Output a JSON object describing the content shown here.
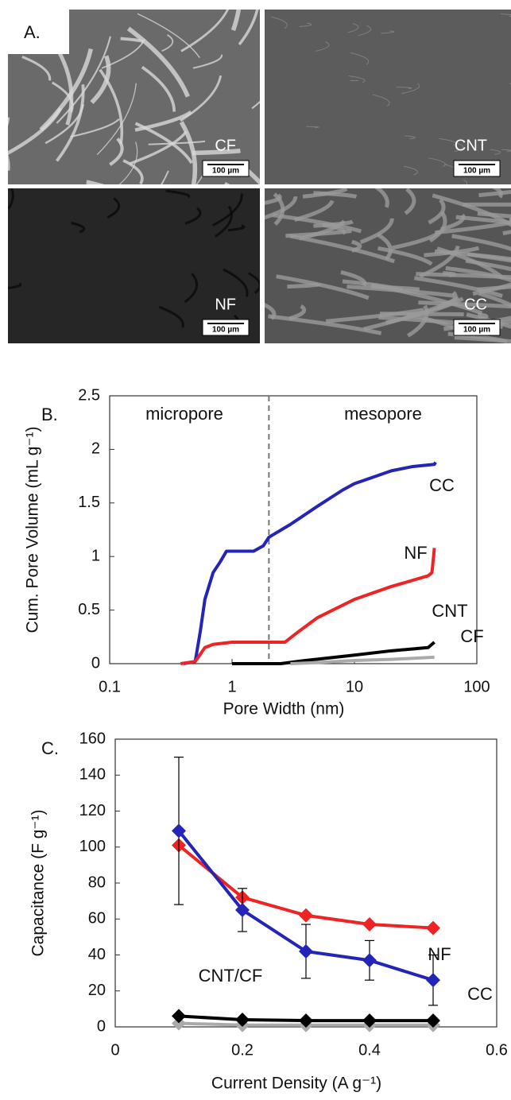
{
  "panel_a": {
    "label": "A.",
    "images": [
      {
        "label": "CF",
        "scale_bar": "100 µm"
      },
      {
        "label": "CNT",
        "scale_bar": "100 µm"
      },
      {
        "label": "NF",
        "scale_bar": "100 µm"
      },
      {
        "label": "CC",
        "scale_bar": "100 µm"
      }
    ]
  },
  "chart_data": [
    {
      "type": "line",
      "label": "B.",
      "x_label": "Pore Width (nm)",
      "y_label": "Cum. Pore Volume (mL g⁻¹)",
      "xscale": "log",
      "xlim": [
        0.1,
        100
      ],
      "xticks": [
        0.1,
        1,
        10,
        100
      ],
      "ylim": [
        0,
        2.5
      ],
      "yticks": [
        0,
        0.5,
        1,
        1.5,
        2,
        2.5
      ],
      "divider": 2,
      "annotations": [
        "micropore",
        "mesopore"
      ],
      "series": [
        {
          "name": "CC",
          "color": "#2424b8",
          "x": [
            0.4,
            0.5,
            0.55,
            0.6,
            0.7,
            0.8,
            0.9,
            1.0,
            1.5,
            1.8,
            2,
            3,
            5,
            8,
            10,
            15,
            20,
            30,
            45,
            46
          ],
          "values": [
            0,
            0.02,
            0.3,
            0.6,
            0.85,
            0.95,
            1.05,
            1.05,
            1.05,
            1.1,
            1.18,
            1.3,
            1.47,
            1.62,
            1.68,
            1.75,
            1.8,
            1.84,
            1.86,
            1.88
          ]
        },
        {
          "name": "NF",
          "color": "#ee2424",
          "x": [
            0.38,
            0.5,
            0.6,
            0.7,
            1,
            2,
            2.7,
            3.5,
            5,
            10,
            20,
            40,
            43,
            45
          ],
          "values": [
            0,
            0.02,
            0.15,
            0.18,
            0.2,
            0.2,
            0.2,
            0.3,
            0.43,
            0.6,
            0.72,
            0.82,
            0.85,
            1.08
          ]
        },
        {
          "name": "CNT",
          "color": "#000000",
          "x": [
            1,
            2.5,
            4,
            10,
            20,
            40,
            45
          ],
          "values": [
            0,
            0,
            0.03,
            0.08,
            0.12,
            0.15,
            0.2
          ]
        },
        {
          "name": "CF",
          "color": "#aaaaaa",
          "x": [
            3,
            5,
            10,
            20,
            45
          ],
          "values": [
            0,
            0.01,
            0.03,
            0.04,
            0.06
          ]
        }
      ]
    },
    {
      "type": "line",
      "label": "C.",
      "x_label": "Current Density (A g⁻¹)",
      "y_label": "Capacitance (F g⁻¹)",
      "xlim": [
        0,
        0.6
      ],
      "xticks": [
        0,
        0.2,
        0.4,
        0.6
      ],
      "ylim": [
        0,
        160
      ],
      "yticks": [
        0,
        20,
        40,
        60,
        80,
        100,
        120,
        140,
        160
      ],
      "markers": true,
      "x": [
        0.1,
        0.2,
        0.3,
        0.4,
        0.5
      ],
      "series": [
        {
          "name": "NF",
          "color": "#ee2424",
          "values": [
            101,
            72,
            62,
            57,
            55
          ]
        },
        {
          "name": "CC",
          "color": "#2424b8",
          "values": [
            109,
            65,
            42,
            37,
            26
          ],
          "errors": [
            41,
            12,
            15,
            11,
            14
          ]
        },
        {
          "color": "#aaaaaa",
          "values": [
            2,
            1,
            1,
            1,
            1
          ]
        },
        {
          "name": "CNT/CF",
          "color": "#000000",
          "values": [
            6,
            4,
            3.5,
            3.5,
            3.5
          ]
        }
      ]
    }
  ]
}
